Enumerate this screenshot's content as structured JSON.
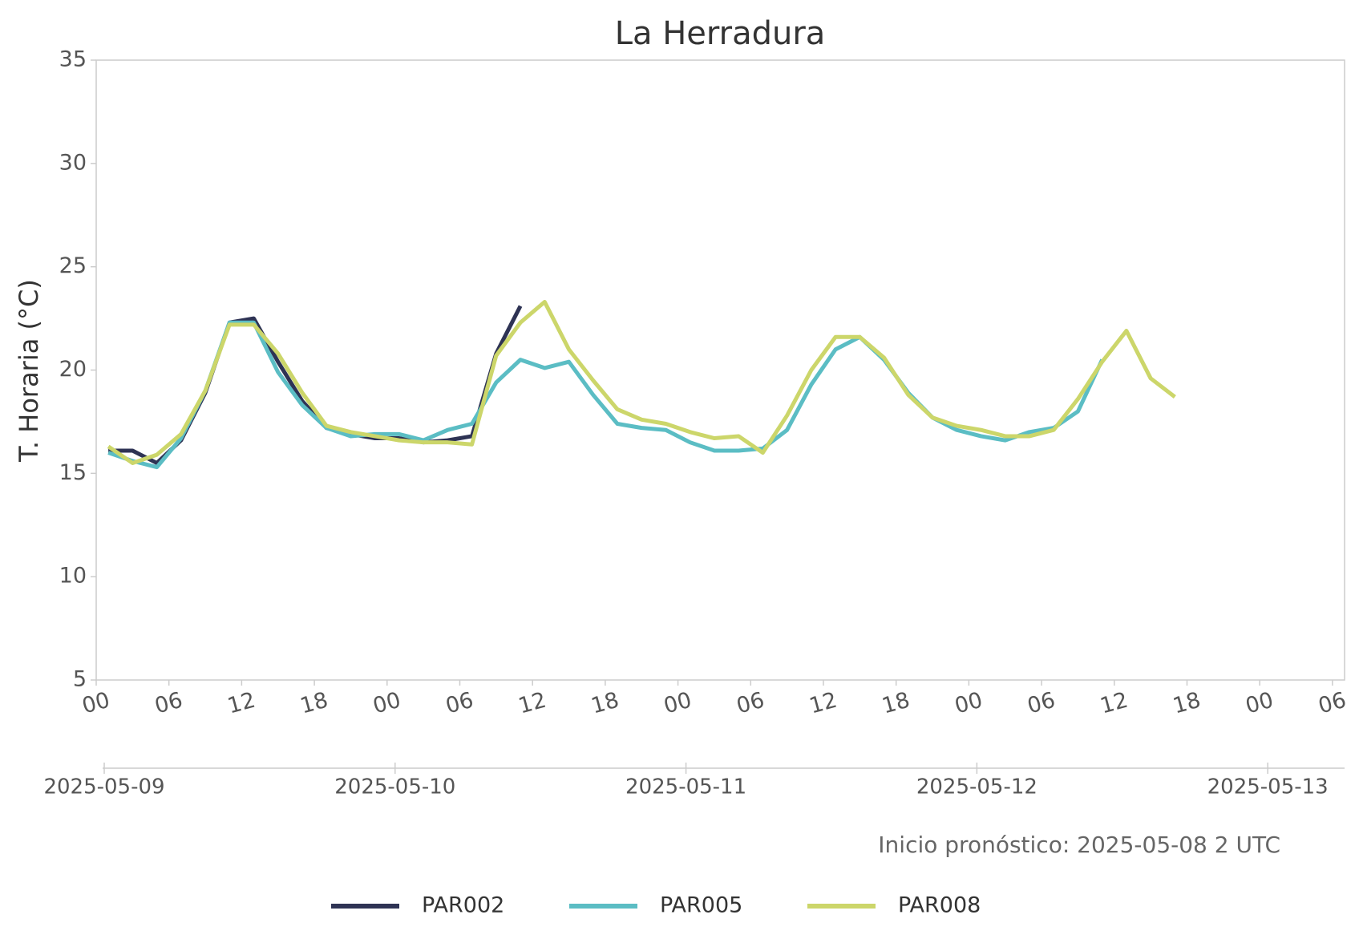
{
  "chart_data": {
    "type": "line",
    "title": "La Herradura",
    "ylabel": "T. Horaria (°C)",
    "annotation": "Inicio pronóstico: 2025-05-08 2 UTC",
    "x": [
      1,
      3,
      5,
      7,
      9,
      11,
      13,
      15,
      17,
      19,
      21,
      23,
      25,
      27,
      29,
      31,
      33,
      35,
      37,
      39,
      41,
      43,
      45,
      47,
      49,
      51,
      53,
      55,
      57,
      59,
      61,
      63,
      65,
      67,
      69,
      71,
      73,
      75,
      77,
      79,
      81,
      83,
      85,
      87,
      89
    ],
    "series": [
      {
        "name": "PAR002",
        "color": "#2e3354",
        "values": [
          16.1,
          16.1,
          15.5,
          16.6,
          18.9,
          22.3,
          22.5,
          20.4,
          18.5,
          17.2,
          16.9,
          16.7,
          16.7,
          16.5,
          16.6,
          16.8,
          20.8,
          23.1,
          null,
          null,
          null,
          null,
          null,
          null,
          null,
          null,
          null,
          null,
          null,
          null,
          null,
          null,
          null,
          null,
          null,
          null,
          null,
          null,
          null,
          null,
          null,
          null,
          null,
          null,
          null
        ]
      },
      {
        "name": "PAR005",
        "color": "#5bbdc4",
        "values": [
          16.0,
          15.6,
          15.3,
          16.7,
          19.0,
          22.3,
          22.3,
          19.9,
          18.3,
          17.2,
          16.8,
          16.9,
          16.9,
          16.6,
          17.1,
          17.4,
          19.4,
          20.5,
          20.1,
          20.4,
          18.8,
          17.4,
          17.2,
          17.1,
          16.5,
          16.1,
          16.1,
          16.2,
          17.1,
          19.3,
          21.0,
          21.6,
          20.5,
          18.9,
          17.7,
          17.1,
          16.8,
          16.6,
          17.0,
          17.2,
          18.0,
          20.5,
          null,
          null,
          null
        ]
      },
      {
        "name": "PAR008",
        "color": "#ccd66a",
        "values": [
          16.3,
          15.5,
          15.9,
          16.9,
          19.0,
          22.2,
          22.2,
          20.8,
          18.9,
          17.3,
          17.0,
          16.8,
          16.6,
          16.5,
          16.5,
          16.4,
          20.7,
          22.3,
          23.3,
          21.0,
          19.5,
          18.1,
          17.6,
          17.4,
          17.0,
          16.7,
          16.8,
          16.0,
          17.8,
          20.0,
          21.6,
          21.6,
          20.6,
          18.8,
          17.7,
          17.3,
          17.1,
          16.8,
          16.8,
          17.1,
          18.6,
          20.4,
          21.9,
          19.6,
          18.7
        ]
      }
    ],
    "xlim": [
      0,
      103
    ],
    "xticks": [
      {
        "value": 0,
        "label": "00"
      },
      {
        "value": 6,
        "label": "06"
      },
      {
        "value": 12,
        "label": "12"
      },
      {
        "value": 18,
        "label": "18"
      },
      {
        "value": 24,
        "label": "00"
      },
      {
        "value": 30,
        "label": "06"
      },
      {
        "value": 36,
        "label": "12"
      },
      {
        "value": 42,
        "label": "18"
      },
      {
        "value": 48,
        "label": "00"
      },
      {
        "value": 54,
        "label": "06"
      },
      {
        "value": 60,
        "label": "12"
      },
      {
        "value": 66,
        "label": "18"
      },
      {
        "value": 72,
        "label": "00"
      },
      {
        "value": 78,
        "label": "06"
      },
      {
        "value": 84,
        "label": "12"
      },
      {
        "value": 90,
        "label": "18"
      },
      {
        "value": 96,
        "label": "00"
      },
      {
        "value": 102,
        "label": "06"
      }
    ],
    "x2ticks": [
      {
        "value": 0,
        "label": "2025-05-09"
      },
      {
        "value": 24,
        "label": "2025-05-10"
      },
      {
        "value": 48,
        "label": "2025-05-11"
      },
      {
        "value": 72,
        "label": "2025-05-12"
      },
      {
        "value": 96,
        "label": "2025-05-13"
      }
    ],
    "ylim": [
      5,
      35
    ],
    "yticks": [
      5,
      10,
      15,
      20,
      25,
      30,
      35
    ],
    "grid": false
  }
}
